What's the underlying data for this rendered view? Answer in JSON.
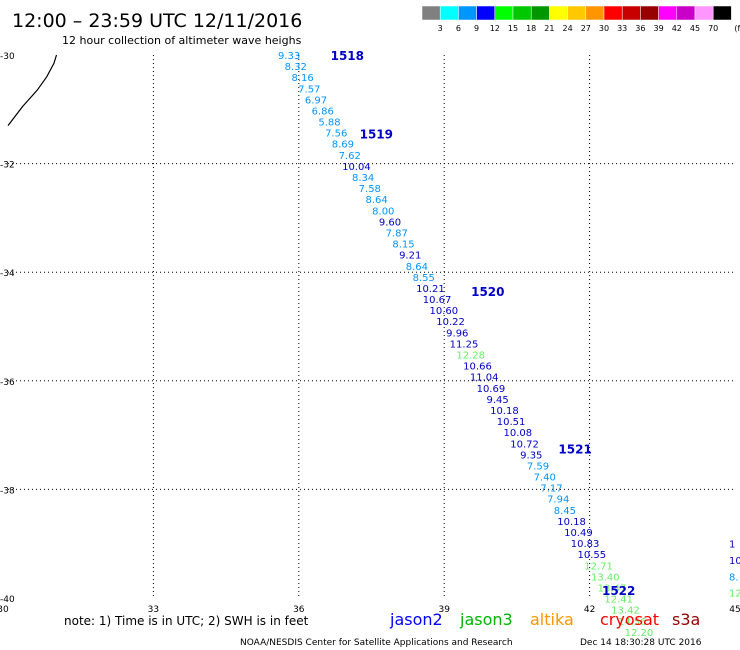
{
  "header": {
    "title": "12:00 – 23:59 UTC 12/11/2016",
    "subtitle": "12 hour collection of altimeter wave heighs"
  },
  "color_scale": {
    "labels": [
      "3",
      "6",
      "9",
      "12",
      "15",
      "18",
      "21",
      "24",
      "27",
      "30",
      "33",
      "36",
      "39",
      "42",
      "45",
      "70"
    ],
    "unit": "(ft)",
    "colors": [
      "#808080",
      "#00ffff",
      "#0096ff",
      "#0000ff",
      "#00ff00",
      "#00c800",
      "#009600",
      "#ffff00",
      "#ffc800",
      "#ff9600",
      "#ff0000",
      "#c80000",
      "#960000",
      "#ff00ff",
      "#c800c8",
      "#ff96ff",
      "#000000"
    ]
  },
  "axes": {
    "lon_ticks": [
      "30",
      "33",
      "36",
      "39",
      "42",
      "45"
    ],
    "lat_ticks": [
      "-30",
      "-32",
      "-34",
      "-36",
      "-38",
      "-40"
    ]
  },
  "pass_labels": [
    {
      "text": "1518",
      "lon": 37.0,
      "lat": -30.0
    },
    {
      "text": "1519",
      "lon": 37.6,
      "lat": -31.45
    },
    {
      "text": "1520",
      "lon": 39.9,
      "lat": -34.35
    },
    {
      "text": "1521",
      "lon": 41.7,
      "lat": -37.25
    },
    {
      "text": "1522",
      "lon": 42.6,
      "lat": -39.85
    }
  ],
  "swh": {
    "lon_start": 35.8,
    "lat_start": -30.0,
    "dlon": 0.1388,
    "dlat": -0.2043,
    "readings": [
      {
        "v": "9.33",
        "c": "#0096ff"
      },
      {
        "v": "8.32",
        "c": "#0096ff"
      },
      {
        "v": "8.16",
        "c": "#0096ff"
      },
      {
        "v": "7.57",
        "c": "#0096ff"
      },
      {
        "v": "6.97",
        "c": "#0096ff"
      },
      {
        "v": "6.86",
        "c": "#0096ff"
      },
      {
        "v": "5.88",
        "c": "#0096ff"
      },
      {
        "v": "7.56",
        "c": "#0096ff"
      },
      {
        "v": "8.69",
        "c": "#0096ff"
      },
      {
        "v": "7.62",
        "c": "#0096ff"
      },
      {
        "v": "10.04",
        "c": "#0000c8"
      },
      {
        "v": "8.34",
        "c": "#0096ff"
      },
      {
        "v": "7.58",
        "c": "#0096ff"
      },
      {
        "v": "8.64",
        "c": "#0096ff"
      },
      {
        "v": "8.00",
        "c": "#0096ff"
      },
      {
        "v": "9.60",
        "c": "#0000c8"
      },
      {
        "v": "7.87",
        "c": "#0096ff"
      },
      {
        "v": "8.15",
        "c": "#0096ff"
      },
      {
        "v": "9.21",
        "c": "#0000c8"
      },
      {
        "v": "8.64",
        "c": "#0096ff"
      },
      {
        "v": "8.55",
        "c": "#0096ff"
      },
      {
        "v": "10.21",
        "c": "#0000c8"
      },
      {
        "v": "10.67",
        "c": "#0000c8"
      },
      {
        "v": "10.60",
        "c": "#0000c8"
      },
      {
        "v": "10.22",
        "c": "#0000c8"
      },
      {
        "v": "9.96",
        "c": "#0000c8"
      },
      {
        "v": "11.25",
        "c": "#0000c8"
      },
      {
        "v": "12.28",
        "c": "#66ee66"
      },
      {
        "v": "10.66",
        "c": "#0000c8"
      },
      {
        "v": "11.04",
        "c": "#0000c8"
      },
      {
        "v": "10.69",
        "c": "#0000c8"
      },
      {
        "v": "9.45",
        "c": "#0000c8"
      },
      {
        "v": "10.18",
        "c": "#0000c8"
      },
      {
        "v": "10.51",
        "c": "#0000c8"
      },
      {
        "v": "10.08",
        "c": "#0000c8"
      },
      {
        "v": "10.72",
        "c": "#0000c8"
      },
      {
        "v": "9.35",
        "c": "#0000c8"
      },
      {
        "v": "7.59",
        "c": "#0096ff"
      },
      {
        "v": "7.40",
        "c": "#0096ff"
      },
      {
        "v": "7.17",
        "c": "#0096ff"
      },
      {
        "v": "7.94",
        "c": "#0096ff"
      },
      {
        "v": "8.45",
        "c": "#0096ff"
      },
      {
        "v": "10.18",
        "c": "#0000c8"
      },
      {
        "v": "10.49",
        "c": "#0000c8"
      },
      {
        "v": "10.83",
        "c": "#0000c8"
      },
      {
        "v": "10.55",
        "c": "#0000c8"
      },
      {
        "v": "12.71",
        "c": "#66ee66"
      },
      {
        "v": "13.40",
        "c": "#66ee66"
      },
      {
        "v": "13.47",
        "c": "#66ee66"
      },
      {
        "v": "12.41",
        "c": "#66ee66"
      },
      {
        "v": "13.42",
        "c": "#66ee66"
      },
      {
        "v": "14.56",
        "c": "#66ee66"
      },
      {
        "v": "12.20",
        "c": "#66ee66"
      }
    ]
  },
  "edge_fragments": [
    {
      "text": "1",
      "color": "#0000c8",
      "lat": -39.0
    },
    {
      "text": "10",
      "color": "#0000c8",
      "lat": -39.3
    },
    {
      "text": "8.",
      "color": "#0096ff",
      "lat": -39.6
    },
    {
      "text": "12.",
      "color": "#66ee66",
      "lat": -39.9
    }
  ],
  "coastline": [
    [
      30.0,
      -31.3
    ],
    [
      30.3,
      -30.95
    ],
    [
      30.6,
      -30.65
    ],
    [
      30.8,
      -30.4
    ],
    [
      30.95,
      -30.15
    ],
    [
      31.0,
      -30.0
    ]
  ],
  "footer": {
    "note": "note: 1) Time is in UTC; 2) SWH is in feet",
    "satellites": [
      {
        "name": "jason2",
        "color": "#0000ff"
      },
      {
        "name": "jason3",
        "color": "#00b400"
      },
      {
        "name": "altika",
        "color": "#ff9600"
      },
      {
        "name": "cryosat",
        "color": "#ff0000"
      },
      {
        "name": "s3a",
        "color": "#960000"
      }
    ],
    "credit": "NOAA/NESDIS Center for Satellite Applications and Research",
    "timestamp": "Dec 14 18:30:28 UTC 2016"
  }
}
